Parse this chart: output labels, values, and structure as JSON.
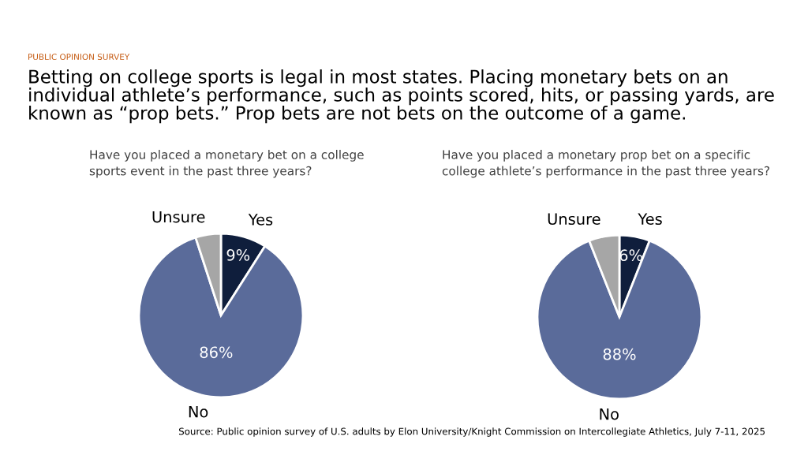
{
  "chart_data": [
    {
      "type": "pie",
      "title": "Have you placed a monetary bet on a college\nsports event in the past three years?",
      "annotations": [
        "PUBLIC OPINION SURVEY",
        "Betting on college sports is legal in most states. Placing monetary bets on an individual athlete’s performance, such as points scored, hits, or passing yards, are known as “prop bets.” Prop bets are not bets on the outcome of a game."
      ],
      "categories": [
        "Yes",
        "No",
        "Unsure"
      ],
      "values": [
        9,
        86,
        5
      ],
      "value_labels": [
        "9%",
        "86%",
        null
      ],
      "colors": [
        "#0f1e3c",
        "#5a6b9a",
        "#a6a6a6"
      ]
    },
    {
      "type": "pie",
      "title": "Have you placed a monetary prop bet on a specific\ncollege athlete’s performance in the past three years?",
      "annotations": [
        "Source: Public opinion survey of U.S. adults by Elon University/Knight Commission on Intercollegiate Athletics, July 7-11, 2025"
      ],
      "categories": [
        "Yes",
        "No",
        "Unsure"
      ],
      "values": [
        6,
        88,
        6
      ],
      "value_labels": [
        "6%",
        "88%",
        null
      ],
      "colors": [
        "#0f1e3c",
        "#5a6b9a",
        "#a6a6a6"
      ]
    }
  ]
}
